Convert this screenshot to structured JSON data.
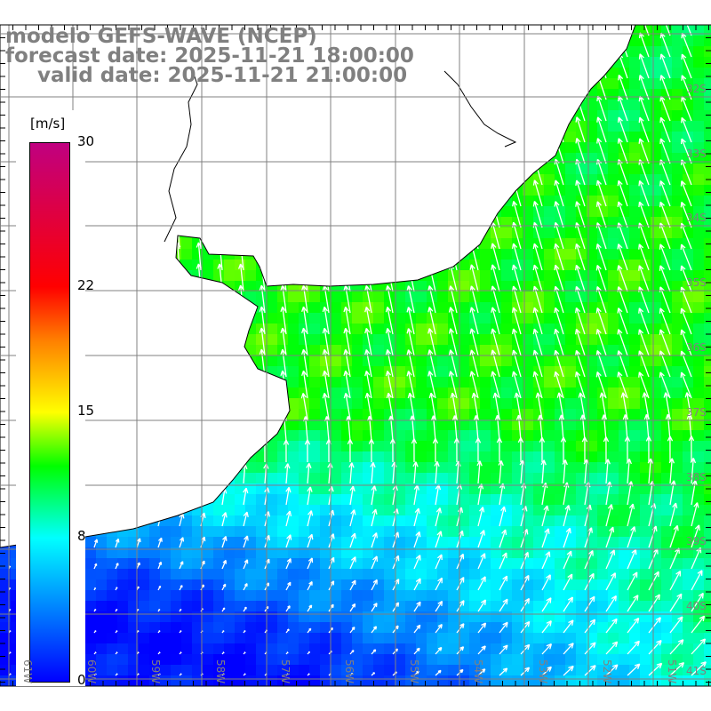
{
  "header": {
    "model": "modelo GEFS-WAVE (NCEP)",
    "forecast": "forecast date: 2025-11-21 18:00:00",
    "valid": "valid date: 2025-11-21 21:00:00"
  },
  "colorbar": {
    "units": "[m/s]",
    "ticks": [
      {
        "label": "30",
        "value": 30
      },
      {
        "label": "22",
        "value": 22
      },
      {
        "label": "15",
        "value": 15
      },
      {
        "label": "8",
        "value": 8
      },
      {
        "label": "0",
        "value": 0
      }
    ],
    "stops": [
      {
        "value": 0,
        "color": "#0000ff"
      },
      {
        "value": 4,
        "color": "#0080ff"
      },
      {
        "value": 8,
        "color": "#00ffff"
      },
      {
        "value": 12,
        "color": "#00ff00"
      },
      {
        "value": 15,
        "color": "#ffff00"
      },
      {
        "value": 19,
        "color": "#ff8000"
      },
      {
        "value": 22,
        "color": "#ff0000"
      },
      {
        "value": 30,
        "color": "#c00080"
      }
    ]
  },
  "lon_labels": [
    "61W",
    "60W",
    "59W",
    "58W",
    "57W",
    "56W",
    "55W",
    "54W",
    "53W",
    "52W",
    "51W"
  ],
  "lat_labels": [
    "32S",
    "33S",
    "34S",
    "35S",
    "36S",
    "37S",
    "38S",
    "39S",
    "40S",
    "41S"
  ],
  "colors": {
    "grid": "#808080",
    "coast": "#000000",
    "arrow": "#ffffff",
    "land": "#ffffff"
  }
}
